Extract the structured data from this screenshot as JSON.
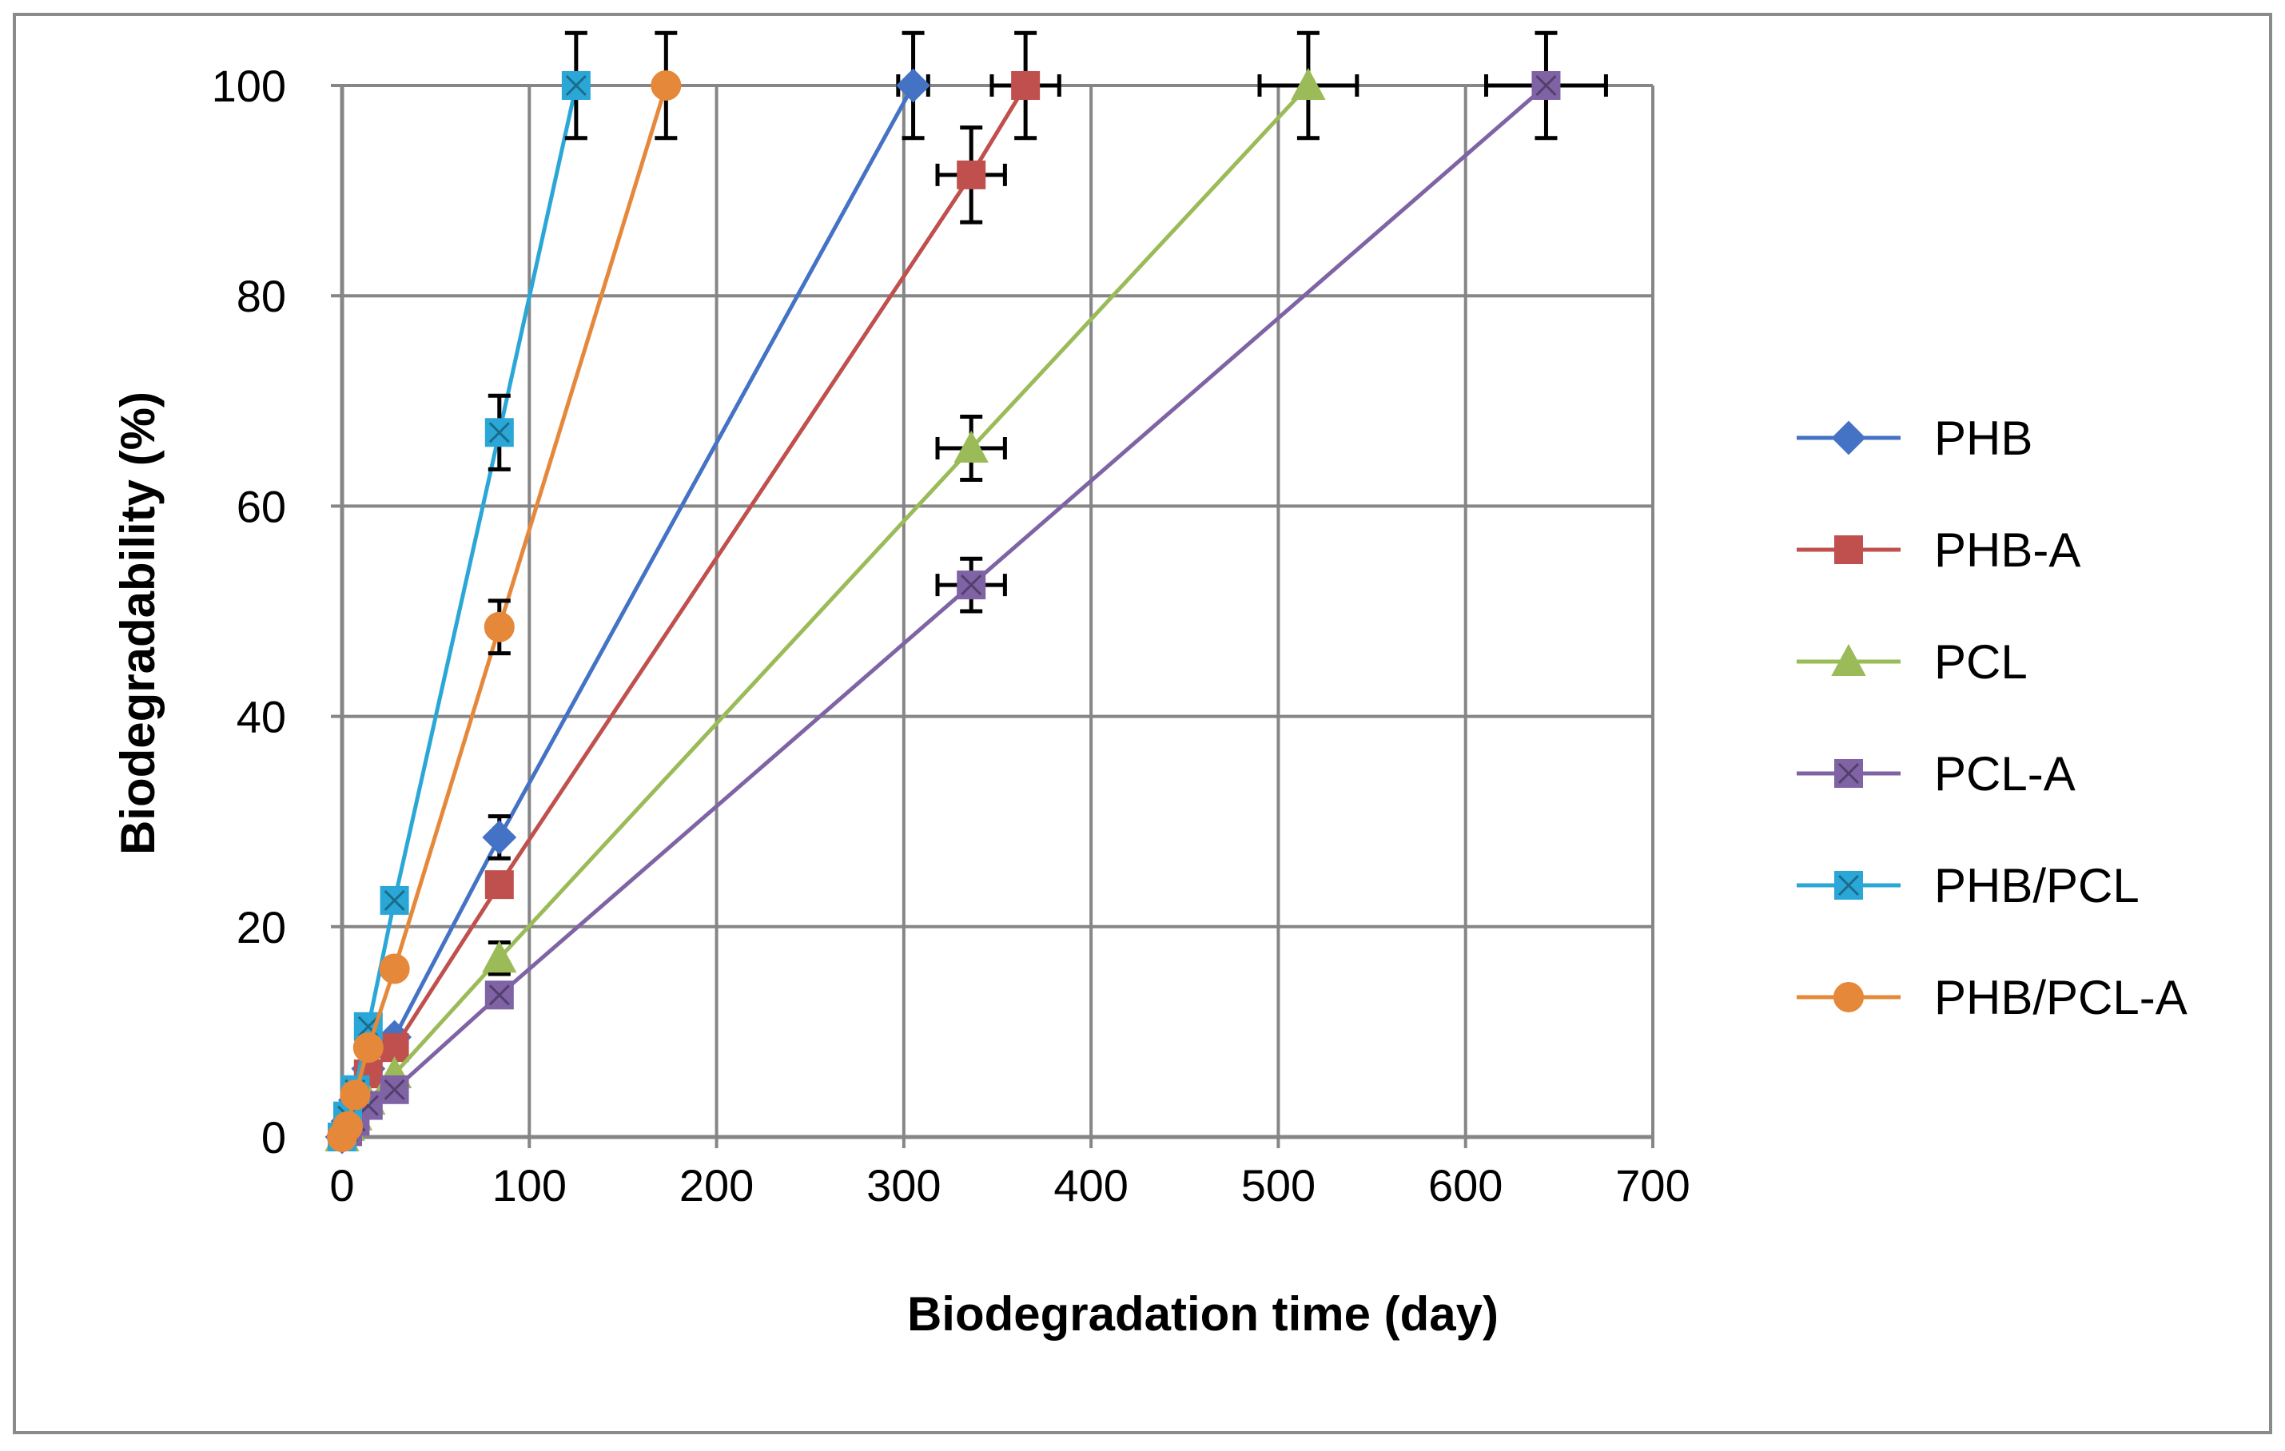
{
  "chart_data": {
    "type": "line",
    "title": "",
    "xlabel": "Biodegradation time (day)",
    "ylabel": "Biodegradability (%)",
    "xlim": [
      0,
      700
    ],
    "ylim": [
      0,
      100
    ],
    "xticks": [
      0,
      100,
      200,
      300,
      400,
      500,
      600,
      700
    ],
    "yticks": [
      0,
      20,
      40,
      60,
      80,
      100
    ],
    "xtick_labels": [
      "0",
      "100",
      "200",
      "300",
      "400",
      "500",
      "600",
      "700"
    ],
    "ytick_labels": [
      "0",
      "20",
      "40",
      "60",
      "80",
      "100"
    ],
    "grid": true,
    "legend_position": "right",
    "series": [
      {
        "name": "PHB",
        "color": "#4472C4",
        "marker": "diamond",
        "x": [
          0,
          3,
          7,
          14,
          28,
          84,
          305
        ],
        "y": [
          0,
          1.5,
          3.5,
          6.5,
          9.5,
          28.5,
          100
        ],
        "error_x": [
          0,
          0,
          0,
          0,
          0,
          0,
          8
        ],
        "error_y": [
          0,
          0,
          0,
          0,
          0,
          2,
          5
        ]
      },
      {
        "name": "PHB-A",
        "color": "#C0504D",
        "marker": "square",
        "x": [
          0,
          3,
          7,
          14,
          28,
          84,
          336,
          365
        ],
        "y": [
          0,
          1.5,
          3,
          6,
          8.5,
          24,
          91.5,
          100
        ],
        "error_x": [
          0,
          0,
          0,
          0,
          0,
          0,
          18,
          18
        ],
        "error_y": [
          0,
          0,
          0,
          0,
          0,
          0,
          4.5,
          5
        ]
      },
      {
        "name": "PCL",
        "color": "#9BBB59",
        "marker": "triangle",
        "x": [
          0,
          3,
          7,
          14,
          28,
          84,
          336,
          516
        ],
        "y": [
          0,
          1,
          2,
          3.5,
          6,
          17,
          65.5,
          100
        ],
        "error_x": [
          0,
          0,
          0,
          0,
          0,
          0,
          18,
          26
        ],
        "error_y": [
          0,
          0,
          0,
          0,
          0,
          1.5,
          3,
          5
        ]
      },
      {
        "name": "PCL-A",
        "color": "#7F63A5",
        "marker": "square-x",
        "x": [
          0,
          3,
          7,
          14,
          28,
          84,
          336,
          643
        ],
        "y": [
          0,
          0.5,
          1.5,
          3,
          4.5,
          13.5,
          52.5,
          100
        ],
        "error_x": [
          0,
          0,
          0,
          0,
          0,
          0,
          18,
          32
        ],
        "error_y": [
          0,
          0,
          0,
          0,
          0,
          0,
          2.5,
          5
        ]
      },
      {
        "name": "PHB/PCL",
        "color": "#2AA7D6",
        "marker": "square-x",
        "x": [
          0,
          3,
          7,
          14,
          28,
          84,
          125
        ],
        "y": [
          0,
          2,
          4.5,
          10.5,
          22.5,
          67,
          100
        ],
        "error_x": [
          0,
          0,
          0,
          0,
          0,
          0,
          0
        ],
        "error_y": [
          0,
          0,
          0,
          0,
          0,
          3.5,
          5
        ]
      },
      {
        "name": "PHB/PCL-A",
        "color": "#E5883A",
        "marker": "circle",
        "x": [
          0,
          3,
          7,
          14,
          28,
          84,
          173
        ],
        "y": [
          0,
          1,
          4,
          8.5,
          16,
          48.5,
          100
        ],
        "error_x": [
          0,
          0,
          0,
          0,
          0,
          0,
          0
        ],
        "error_y": [
          0,
          0,
          0,
          0,
          0,
          2.5,
          5
        ]
      }
    ]
  }
}
